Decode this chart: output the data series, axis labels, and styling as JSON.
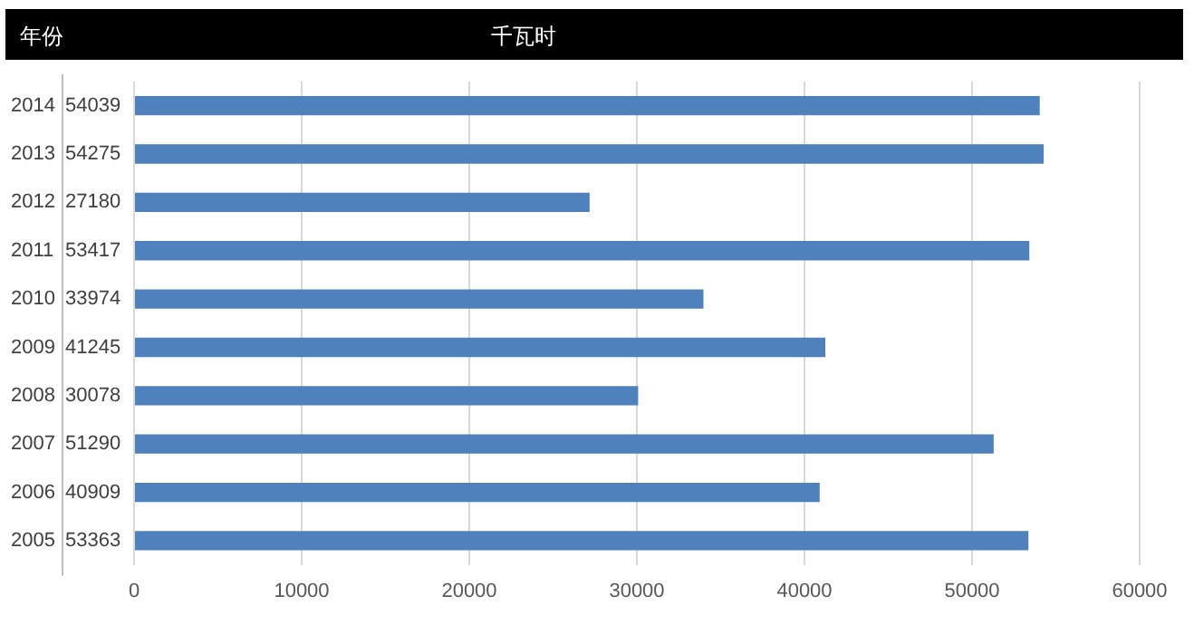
{
  "chart_data": {
    "type": "bar",
    "orientation": "horizontal",
    "ylabel": "年份",
    "xlabel": "千瓦时",
    "categories": [
      "2014",
      "2013",
      "2012",
      "2011",
      "2010",
      "2009",
      "2008",
      "2007",
      "2006",
      "2005"
    ],
    "values": [
      54039,
      54275,
      27180,
      53417,
      33974,
      41245,
      30078,
      51290,
      40909,
      53363
    ],
    "color": "#4f81bd",
    "xlim": [
      0,
      60000
    ],
    "xticks": [
      0,
      10000,
      20000,
      30000,
      40000,
      50000,
      60000
    ],
    "grid": "x",
    "legend": false,
    "data_labels": true
  }
}
